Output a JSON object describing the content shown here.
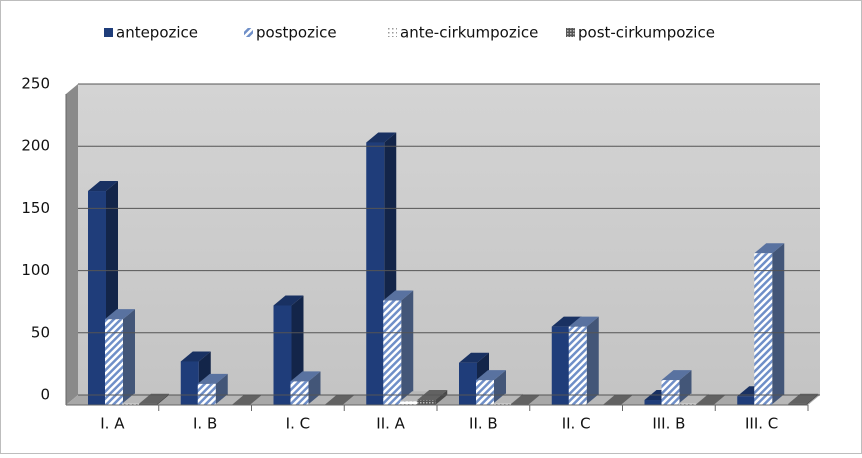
{
  "chart_data": {
    "type": "bar3d",
    "categories": [
      "I. A",
      "I. B",
      "I. C",
      "II. A",
      "II. B",
      "II. C",
      "III. B",
      "III. C"
    ],
    "series": [
      {
        "name": "antepozice",
        "color": "#1f3d7a",
        "values": [
          172,
          35,
          80,
          211,
          34,
          63,
          4,
          7
        ]
      },
      {
        "name": "postpozice",
        "color": "#6f8fc8",
        "values": [
          69,
          17,
          19,
          84,
          20,
          63,
          20,
          122
        ]
      },
      {
        "name": "ante-cirkumpozice",
        "color": "#e6e6e6",
        "values": [
          1,
          0,
          0,
          3,
          1,
          0,
          1,
          0
        ]
      },
      {
        "name": "post-cirkumpozice",
        "color": "#7a7a7a",
        "values": [
          1,
          0,
          0,
          4,
          0,
          0,
          0,
          1
        ]
      }
    ],
    "ylim": [
      0,
      250
    ],
    "yticks": [
      0,
      50,
      100,
      150,
      200,
      250
    ],
    "grid": true,
    "legend": "top"
  }
}
